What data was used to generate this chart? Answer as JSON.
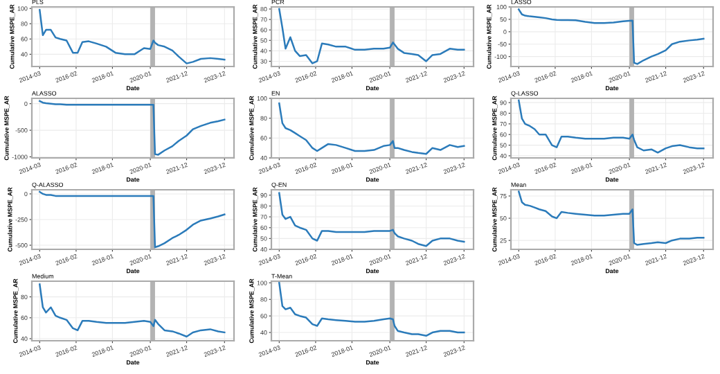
{
  "chart_data": [
    {
      "type": "line",
      "title": "PLS",
      "xlabel": "Date",
      "ylabel": "Cumulative MSPE_AR",
      "x": [
        "2014-03",
        "2014-05",
        "2014-07",
        "2014-10",
        "2015-01",
        "2015-04",
        "2015-08",
        "2015-12",
        "2016-03",
        "2016-06",
        "2016-10",
        "2017-03",
        "2017-09",
        "2018-03",
        "2018-09",
        "2019-03",
        "2019-09",
        "2020-01",
        "2020-03",
        "2020-04",
        "2020-06",
        "2020-10",
        "2021-03",
        "2021-07",
        "2021-12",
        "2022-04",
        "2022-09",
        "2023-03",
        "2023-08",
        "2023-12"
      ],
      "series": [
        {
          "color": "#2b7bba",
          "values": [
            98,
            65,
            72,
            72,
            62,
            60,
            58,
            42,
            42,
            56,
            57,
            54,
            50,
            42,
            40,
            40,
            48,
            47,
            58,
            55,
            52,
            50,
            45,
            37,
            28,
            30,
            34,
            35,
            34,
            33
          ]
        }
      ],
      "xlim": [
        "2013-10",
        "2024-06"
      ],
      "xticks": [
        "2014-03",
        "2016-02",
        "2018-01",
        "2020-01",
        "2021-12",
        "2023-12"
      ],
      "ylim": [
        24,
        102
      ],
      "yticks": [
        40,
        60,
        80,
        100
      ],
      "bands": [
        {
          "axis": "x",
          "from": "2020-01",
          "to": "2020-04",
          "color": "#b3b3b3"
        }
      ],
      "grid": true
    },
    {
      "type": "line",
      "title": "PCR",
      "xlabel": "Date",
      "ylabel": "Cumulative MSPE_AR",
      "x": [
        "2014-03",
        "2014-05",
        "2014-07",
        "2014-10",
        "2015-01",
        "2015-04",
        "2015-08",
        "2015-12",
        "2016-03",
        "2016-06",
        "2016-10",
        "2017-03",
        "2017-09",
        "2018-03",
        "2018-09",
        "2019-03",
        "2019-09",
        "2020-01",
        "2020-03",
        "2020-04",
        "2020-06",
        "2020-10",
        "2021-03",
        "2021-07",
        "2021-12",
        "2022-04",
        "2022-09",
        "2023-03",
        "2023-08",
        "2023-12"
      ],
      "series": [
        {
          "color": "#2b7bba",
          "values": [
            80,
            62,
            42,
            53,
            40,
            35,
            36,
            28,
            30,
            47,
            46,
            44,
            44,
            41,
            41,
            42,
            42,
            43,
            48,
            46,
            42,
            38,
            37,
            36,
            30,
            36,
            37,
            42,
            41,
            41
          ]
        }
      ],
      "xlim": [
        "2013-10",
        "2024-06"
      ],
      "xticks": [
        "2014-03",
        "2016-02",
        "2018-01",
        "2020-01",
        "2021-12",
        "2023-12"
      ],
      "ylim": [
        25,
        82
      ],
      "yticks": [
        30,
        40,
        50,
        60,
        70,
        80
      ],
      "bands": [
        {
          "axis": "x",
          "from": "2020-01",
          "to": "2020-04",
          "color": "#b3b3b3"
        }
      ],
      "grid": true
    },
    {
      "type": "line",
      "title": "LASSO",
      "xlabel": "Date",
      "ylabel": "Cumulative MSPE_AR",
      "x": [
        "2014-03",
        "2014-05",
        "2014-07",
        "2014-10",
        "2015-01",
        "2015-04",
        "2015-08",
        "2015-12",
        "2016-03",
        "2016-06",
        "2016-10",
        "2017-03",
        "2017-09",
        "2018-03",
        "2018-09",
        "2019-03",
        "2019-09",
        "2020-01",
        "2020-03",
        "2020-04",
        "2020-06",
        "2020-10",
        "2021-03",
        "2021-07",
        "2021-12",
        "2022-04",
        "2022-09",
        "2023-03",
        "2023-08",
        "2023-12"
      ],
      "series": [
        {
          "color": "#2b7bba",
          "values": [
            90,
            70,
            65,
            62,
            60,
            58,
            55,
            50,
            48,
            47,
            47,
            46,
            40,
            35,
            35,
            37,
            42,
            44,
            45,
            -125,
            -130,
            -115,
            -100,
            -90,
            -75,
            -50,
            -40,
            -35,
            -32,
            -28
          ]
        }
      ],
      "xlim": [
        "2013-10",
        "2024-06"
      ],
      "xticks": [
        "2014-03",
        "2016-02",
        "2018-01",
        "2020-01",
        "2021-12",
        "2023-12"
      ],
      "ylim": [
        -140,
        100
      ],
      "yticks": [
        -100,
        -50,
        0,
        50,
        100
      ],
      "bands": [
        {
          "axis": "x",
          "from": "2020-01",
          "to": "2020-04",
          "color": "#b3b3b3"
        }
      ],
      "grid": true
    },
    {
      "type": "line",
      "title": "ALASSO",
      "xlabel": "Date",
      "ylabel": "Cumulative MSPE_AR",
      "x": [
        "2014-03",
        "2014-05",
        "2014-07",
        "2014-10",
        "2015-01",
        "2015-04",
        "2015-08",
        "2015-12",
        "2016-03",
        "2016-06",
        "2016-10",
        "2017-03",
        "2017-09",
        "2018-03",
        "2018-09",
        "2019-03",
        "2019-09",
        "2020-01",
        "2020-03",
        "2020-04",
        "2020-06",
        "2020-10",
        "2021-03",
        "2021-07",
        "2021-12",
        "2022-04",
        "2022-09",
        "2023-03",
        "2023-08",
        "2023-12"
      ],
      "series": [
        {
          "color": "#2b7bba",
          "values": [
            50,
            20,
            10,
            0,
            -10,
            -10,
            -20,
            -20,
            -20,
            -20,
            -20,
            -20,
            -20,
            -20,
            -20,
            -20,
            -20,
            -20,
            -20,
            -950,
            -960,
            -880,
            -800,
            -700,
            -600,
            -480,
            -420,
            -360,
            -330,
            -300
          ]
        }
      ],
      "xlim": [
        "2013-10",
        "2024-06"
      ],
      "xticks": [
        "2014-03",
        "2016-02",
        "2018-01",
        "2020-01",
        "2021-12",
        "2023-12"
      ],
      "ylim": [
        -1020,
        100
      ],
      "yticks": [
        -1000,
        -500,
        0
      ],
      "bands": [
        {
          "axis": "x",
          "from": "2020-01",
          "to": "2020-04",
          "color": "#b3b3b3"
        }
      ],
      "grid": true
    },
    {
      "type": "line",
      "title": "EN",
      "xlabel": "Date",
      "ylabel": "Cumulative MSPE_AR",
      "x": [
        "2014-03",
        "2014-05",
        "2014-07",
        "2014-10",
        "2015-01",
        "2015-04",
        "2015-08",
        "2015-12",
        "2016-03",
        "2016-06",
        "2016-10",
        "2017-03",
        "2017-09",
        "2018-03",
        "2018-09",
        "2019-03",
        "2019-09",
        "2020-01",
        "2020-03",
        "2020-04",
        "2020-06",
        "2020-10",
        "2021-03",
        "2021-07",
        "2021-12",
        "2022-04",
        "2022-09",
        "2023-03",
        "2023-08",
        "2023-12"
      ],
      "series": [
        {
          "color": "#2b7bba",
          "values": [
            95,
            75,
            70,
            68,
            65,
            62,
            58,
            50,
            47,
            50,
            54,
            53,
            50,
            47,
            47,
            48,
            52,
            53,
            57,
            50,
            50,
            48,
            46,
            45,
            44,
            50,
            48,
            53,
            51,
            52
          ]
        }
      ],
      "xlim": [
        "2013-10",
        "2024-06"
      ],
      "xticks": [
        "2014-03",
        "2016-02",
        "2018-01",
        "2020-01",
        "2021-12",
        "2023-12"
      ],
      "ylim": [
        40,
        100
      ],
      "yticks": [
        40,
        60,
        80,
        100
      ],
      "bands": [
        {
          "axis": "x",
          "from": "2020-01",
          "to": "2020-04",
          "color": "#b3b3b3"
        }
      ],
      "grid": true
    },
    {
      "type": "line",
      "title": "Q-LASSO",
      "xlabel": "Date",
      "ylabel": "Cumulative MSPE_AR",
      "x": [
        "2014-03",
        "2014-05",
        "2014-07",
        "2014-10",
        "2015-01",
        "2015-04",
        "2015-08",
        "2015-12",
        "2016-03",
        "2016-06",
        "2016-10",
        "2017-03",
        "2017-09",
        "2018-03",
        "2018-09",
        "2019-03",
        "2019-09",
        "2020-01",
        "2020-03",
        "2020-04",
        "2020-06",
        "2020-10",
        "2021-03",
        "2021-07",
        "2021-12",
        "2022-04",
        "2022-09",
        "2023-03",
        "2023-08",
        "2023-12"
      ],
      "series": [
        {
          "color": "#2b7bba",
          "values": [
            92,
            75,
            70,
            68,
            65,
            60,
            60,
            50,
            48,
            58,
            58,
            57,
            56,
            56,
            56,
            57,
            57,
            56,
            60,
            55,
            48,
            45,
            46,
            43,
            47,
            49,
            50,
            48,
            47,
            47
          ]
        }
      ],
      "xlim": [
        "2013-10",
        "2024-06"
      ],
      "xticks": [
        "2014-03",
        "2016-02",
        "2018-01",
        "2020-01",
        "2021-12",
        "2023-12"
      ],
      "ylim": [
        38,
        94
      ],
      "yticks": [
        40,
        50,
        60,
        70,
        80,
        90
      ],
      "bands": [
        {
          "axis": "x",
          "from": "2020-01",
          "to": "2020-04",
          "color": "#b3b3b3"
        }
      ],
      "grid": true
    },
    {
      "type": "line",
      "title": "Q-ALASSO",
      "xlabel": "Date",
      "ylabel": "Cumulative MSPE_AR",
      "x": [
        "2014-03",
        "2014-05",
        "2014-07",
        "2014-10",
        "2015-01",
        "2015-04",
        "2015-08",
        "2015-12",
        "2016-03",
        "2016-06",
        "2016-10",
        "2017-03",
        "2017-09",
        "2018-03",
        "2018-09",
        "2019-03",
        "2019-09",
        "2020-01",
        "2020-03",
        "2020-04",
        "2020-06",
        "2020-10",
        "2021-03",
        "2021-07",
        "2021-12",
        "2022-04",
        "2022-09",
        "2023-03",
        "2023-08",
        "2023-12"
      ],
      "series": [
        {
          "color": "#2b7bba",
          "values": [
            20,
            0,
            -10,
            -10,
            -20,
            -20,
            -20,
            -20,
            -20,
            -20,
            -20,
            -20,
            -20,
            -20,
            -20,
            -20,
            -20,
            -20,
            -20,
            -520,
            -510,
            -480,
            -430,
            -400,
            -350,
            -300,
            -260,
            -240,
            -220,
            -200
          ]
        }
      ],
      "xlim": [
        "2013-10",
        "2024-06"
      ],
      "xticks": [
        "2014-03",
        "2016-02",
        "2018-01",
        "2020-01",
        "2021-12",
        "2023-12"
      ],
      "ylim": [
        -540,
        40
      ],
      "yticks": [
        -500,
        -250,
        0
      ],
      "bands": [
        {
          "axis": "x",
          "from": "2020-01",
          "to": "2020-04",
          "color": "#b3b3b3"
        }
      ],
      "grid": true
    },
    {
      "type": "line",
      "title": "Q-EN",
      "xlabel": "Date",
      "ylabel": "Cumulative MSPE_AR",
      "x": [
        "2014-03",
        "2014-05",
        "2014-07",
        "2014-10",
        "2015-01",
        "2015-04",
        "2015-08",
        "2015-12",
        "2016-03",
        "2016-06",
        "2016-10",
        "2017-03",
        "2017-09",
        "2018-03",
        "2018-09",
        "2019-03",
        "2019-09",
        "2020-01",
        "2020-03",
        "2020-04",
        "2020-06",
        "2020-10",
        "2021-03",
        "2021-07",
        "2021-12",
        "2022-04",
        "2022-09",
        "2023-03",
        "2023-08",
        "2023-12"
      ],
      "series": [
        {
          "color": "#2b7bba",
          "values": [
            92,
            72,
            68,
            70,
            62,
            60,
            58,
            50,
            48,
            57,
            57,
            56,
            56,
            56,
            56,
            57,
            57,
            57,
            58,
            55,
            52,
            50,
            48,
            45,
            43,
            48,
            50,
            50,
            48,
            47
          ]
        }
      ],
      "xlim": [
        "2013-10",
        "2024-06"
      ],
      "xticks": [
        "2014-03",
        "2016-02",
        "2018-01",
        "2020-01",
        "2021-12",
        "2023-12"
      ],
      "ylim": [
        40,
        95
      ],
      "yticks": [
        40,
        50,
        60,
        70,
        80,
        90
      ],
      "bands": [
        {
          "axis": "x",
          "from": "2020-01",
          "to": "2020-04",
          "color": "#b3b3b3"
        }
      ],
      "grid": true
    },
    {
      "type": "line",
      "title": "Mean",
      "xlabel": "Date",
      "ylabel": "Cumulative MSPE_AR",
      "x": [
        "2014-03",
        "2014-05",
        "2014-07",
        "2014-10",
        "2015-01",
        "2015-04",
        "2015-08",
        "2015-12",
        "2016-03",
        "2016-06",
        "2016-10",
        "2017-03",
        "2017-09",
        "2018-03",
        "2018-09",
        "2019-03",
        "2019-09",
        "2020-01",
        "2020-03",
        "2020-04",
        "2020-06",
        "2020-10",
        "2021-03",
        "2021-07",
        "2021-12",
        "2022-04",
        "2022-09",
        "2023-03",
        "2023-08",
        "2023-12"
      ],
      "series": [
        {
          "color": "#2b7bba",
          "values": [
            80,
            68,
            65,
            64,
            62,
            60,
            58,
            52,
            50,
            57,
            56,
            55,
            54,
            53,
            53,
            54,
            55,
            55,
            60,
            22,
            20,
            21,
            22,
            23,
            22,
            25,
            27,
            27,
            28,
            28
          ]
        }
      ],
      "xlim": [
        "2013-10",
        "2024-06"
      ],
      "xticks": [
        "2014-03",
        "2016-02",
        "2018-01",
        "2020-01",
        "2021-12",
        "2023-12"
      ],
      "ylim": [
        15,
        82
      ],
      "yticks": [
        25,
        50,
        75
      ],
      "bands": [
        {
          "axis": "x",
          "from": "2020-01",
          "to": "2020-04",
          "color": "#b3b3b3"
        }
      ],
      "grid": true
    },
    {
      "type": "line",
      "title": "Medium",
      "xlabel": "Date",
      "ylabel": "Cumulative MSPE_AR",
      "x": [
        "2014-03",
        "2014-05",
        "2014-07",
        "2014-10",
        "2015-01",
        "2015-04",
        "2015-08",
        "2015-12",
        "2016-03",
        "2016-06",
        "2016-10",
        "2017-03",
        "2017-09",
        "2018-03",
        "2018-09",
        "2019-03",
        "2019-09",
        "2020-01",
        "2020-03",
        "2020-04",
        "2020-06",
        "2020-10",
        "2021-03",
        "2021-07",
        "2021-12",
        "2022-04",
        "2022-09",
        "2023-03",
        "2023-08",
        "2023-12"
      ],
      "series": [
        {
          "color": "#2b7bba",
          "values": [
            92,
            70,
            65,
            70,
            62,
            60,
            58,
            50,
            48,
            57,
            57,
            56,
            55,
            55,
            55,
            56,
            57,
            56,
            52,
            58,
            54,
            48,
            47,
            45,
            42,
            46,
            48,
            49,
            47,
            46
          ]
        }
      ],
      "xlim": [
        "2013-10",
        "2024-06"
      ],
      "xticks": [
        "2014-03",
        "2016-02",
        "2018-01",
        "2020-01",
        "2021-12",
        "2023-12"
      ],
      "ylim": [
        38,
        95
      ],
      "yticks": [
        40,
        60,
        80
      ],
      "bands": [
        {
          "axis": "x",
          "from": "2020-01",
          "to": "2020-04",
          "color": "#b3b3b3"
        }
      ],
      "grid": true
    },
    {
      "type": "line",
      "title": "T-Mean",
      "xlabel": "Date",
      "ylabel": "Cumulative MSPE_AR",
      "x": [
        "2014-03",
        "2014-05",
        "2014-07",
        "2014-10",
        "2015-01",
        "2015-04",
        "2015-08",
        "2015-12",
        "2016-03",
        "2016-06",
        "2016-10",
        "2017-03",
        "2017-09",
        "2018-03",
        "2018-09",
        "2019-03",
        "2019-09",
        "2020-01",
        "2020-03",
        "2020-04",
        "2020-06",
        "2020-10",
        "2021-03",
        "2021-07",
        "2021-12",
        "2022-04",
        "2022-09",
        "2023-03",
        "2023-08",
        "2023-12"
      ],
      "series": [
        {
          "color": "#2b7bba",
          "values": [
            100,
            72,
            68,
            70,
            62,
            60,
            58,
            50,
            48,
            57,
            56,
            55,
            54,
            53,
            53,
            54,
            56,
            57,
            56,
            48,
            42,
            40,
            38,
            38,
            36,
            40,
            42,
            42,
            40,
            40
          ]
        }
      ],
      "xlim": [
        "2013-10",
        "2024-06"
      ],
      "xticks": [
        "2014-03",
        "2016-02",
        "2018-01",
        "2020-01",
        "2021-12",
        "2023-12"
      ],
      "ylim": [
        30,
        102
      ],
      "yticks": [
        40,
        60,
        80,
        100
      ],
      "bands": [
        {
          "axis": "x",
          "from": "2020-01",
          "to": "2020-04",
          "color": "#b3b3b3"
        }
      ],
      "grid": true
    }
  ]
}
